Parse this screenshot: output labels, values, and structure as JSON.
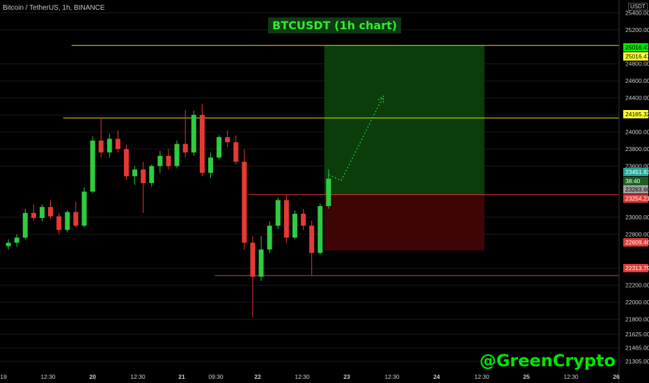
{
  "header": {
    "symbol_label": "Bitcoin / TetherUS, 1h, BINANCE",
    "unit": "USDT"
  },
  "title": "BTCUSDT (1h chart)",
  "watermark": "@GreenCrypto",
  "colors": {
    "up": "#26a69a",
    "up_bright": "#2ecc40",
    "down": "#e53935",
    "resistance_line": "#e6e600",
    "support_line": "#e53935",
    "profit_zone": "#0b3d0b",
    "loss_zone": "#3d0505",
    "projection": "#2ecc40",
    "grid": "#1a1a1a",
    "axis_text": "#cfcfcf"
  },
  "chart_data": {
    "type": "candlestick",
    "title": "BTCUSDT (1h chart)",
    "ylim": [
      21200,
      25550
    ],
    "y_ticks": [
      "25400.00",
      "25200.00",
      "24800.00",
      "24600.00",
      "24400.00",
      "24200.00",
      "24000.00",
      "23800.00",
      "23600.00",
      "23000.00",
      "22800.00",
      "22400.00",
      "22200.00",
      "22000.00",
      "21800.00",
      "21625.00",
      "21465.00",
      "21305.00"
    ],
    "x_ticks": [
      "19",
      "12:30",
      "20",
      "12:30",
      "21",
      "09:30",
      "22",
      "12:30",
      "23",
      "12:30",
      "24",
      "12:30",
      "25",
      "12:30",
      "26"
    ],
    "horizontal_lines": [
      {
        "price": 25016.47,
        "color": "yellow",
        "x_start": 8
      },
      {
        "price": 24165.32,
        "color": "yellow",
        "x_start": 7
      },
      {
        "price": 23263.6,
        "color": "red",
        "x_start": 29
      },
      {
        "price": 22313.79,
        "color": "red",
        "x_start": 25
      }
    ],
    "price_labels": [
      {
        "text": "25016.47",
        "bg": "#00e600",
        "fg": "#000"
      },
      {
        "text": "25016.47",
        "bg": "#ffff33",
        "fg": "#000"
      },
      {
        "text": "24165.32",
        "bg": "#ffff33",
        "fg": "#000"
      },
      {
        "text": "23451.83",
        "bg": "#26a69a",
        "fg": "#fff"
      },
      {
        "text": "38:40",
        "bg": "#1b5e20",
        "fg": "#fff"
      },
      {
        "text": "23263.60",
        "bg": "#9e9e9e",
        "fg": "#000"
      },
      {
        "text": "23254.21",
        "bg": "#e53935",
        "fg": "#fff"
      },
      {
        "text": "22609.46",
        "bg": "#e53935",
        "fg": "#fff"
      },
      {
        "text": "22313.79",
        "bg": "#e53935",
        "fg": "#fff"
      }
    ],
    "position": {
      "entry": 23263.6,
      "target": 25016.47,
      "stop": 22609.46,
      "x_start": 38,
      "x_end": 57
    },
    "projection": [
      [
        38.5,
        23500
      ],
      [
        40,
        23430
      ],
      [
        45,
        24420
      ]
    ],
    "candles": [
      {
        "o": 22660,
        "h": 22740,
        "l": 22620,
        "c": 22700
      },
      {
        "o": 22700,
        "h": 22800,
        "l": 22650,
        "c": 22760
      },
      {
        "o": 22760,
        "h": 23100,
        "l": 22740,
        "c": 23050
      },
      {
        "o": 23050,
        "h": 23150,
        "l": 22960,
        "c": 22990
      },
      {
        "o": 22990,
        "h": 23150,
        "l": 22950,
        "c": 23120
      },
      {
        "o": 23120,
        "h": 23200,
        "l": 22980,
        "c": 23010
      },
      {
        "o": 23010,
        "h": 23050,
        "l": 22800,
        "c": 22850
      },
      {
        "o": 22850,
        "h": 23080,
        "l": 22820,
        "c": 23060
      },
      {
        "o": 23060,
        "h": 23180,
        "l": 22880,
        "c": 22900
      },
      {
        "o": 22900,
        "h": 23350,
        "l": 22880,
        "c": 23300
      },
      {
        "o": 23300,
        "h": 23950,
        "l": 23280,
        "c": 23900
      },
      {
        "o": 23900,
        "h": 24170,
        "l": 23700,
        "c": 23760
      },
      {
        "o": 23760,
        "h": 23980,
        "l": 23700,
        "c": 23920
      },
      {
        "o": 23920,
        "h": 24020,
        "l": 23760,
        "c": 23800
      },
      {
        "o": 23800,
        "h": 23850,
        "l": 23440,
        "c": 23480
      },
      {
        "o": 23480,
        "h": 23600,
        "l": 23380,
        "c": 23560
      },
      {
        "o": 23560,
        "h": 23650,
        "l": 23050,
        "c": 23400
      },
      {
        "o": 23400,
        "h": 23620,
        "l": 23360,
        "c": 23600
      },
      {
        "o": 23600,
        "h": 23780,
        "l": 23520,
        "c": 23720
      },
      {
        "o": 23720,
        "h": 23800,
        "l": 23560,
        "c": 23600
      },
      {
        "o": 23600,
        "h": 23900,
        "l": 23580,
        "c": 23860
      },
      {
        "o": 23860,
        "h": 24260,
        "l": 23700,
        "c": 23760
      },
      {
        "o": 23760,
        "h": 24250,
        "l": 23720,
        "c": 24200
      },
      {
        "o": 24200,
        "h": 24330,
        "l": 23480,
        "c": 23520
      },
      {
        "o": 23520,
        "h": 23760,
        "l": 23460,
        "c": 23700
      },
      {
        "o": 23700,
        "h": 23960,
        "l": 23680,
        "c": 23940
      },
      {
        "o": 23940,
        "h": 24020,
        "l": 23820,
        "c": 23880
      },
      {
        "o": 23880,
        "h": 23960,
        "l": 23620,
        "c": 23650
      },
      {
        "o": 23650,
        "h": 23800,
        "l": 22620,
        "c": 22700
      },
      {
        "o": 22700,
        "h": 22780,
        "l": 21830,
        "c": 22300
      },
      {
        "o": 22300,
        "h": 22780,
        "l": 22250,
        "c": 22620
      },
      {
        "o": 22620,
        "h": 22950,
        "l": 22580,
        "c": 22900
      },
      {
        "o": 22900,
        "h": 23230,
        "l": 22860,
        "c": 23200
      },
      {
        "o": 23200,
        "h": 23260,
        "l": 22700,
        "c": 22760
      },
      {
        "o": 22760,
        "h": 23080,
        "l": 22740,
        "c": 23040
      },
      {
        "o": 23040,
        "h": 23100,
        "l": 22850,
        "c": 22900
      },
      {
        "o": 22900,
        "h": 22960,
        "l": 22320,
        "c": 22580
      },
      {
        "o": 22580,
        "h": 23160,
        "l": 22560,
        "c": 23130
      },
      {
        "o": 23130,
        "h": 23560,
        "l": 23100,
        "c": 23451.83
      }
    ]
  }
}
